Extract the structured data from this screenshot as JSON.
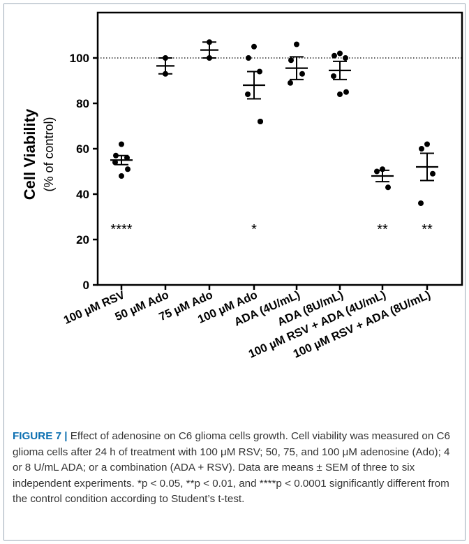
{
  "chart_data": {
    "type": "scatter",
    "ylabel_main": "Cell Viability",
    "ylabel_sub": "(% of control)",
    "ylim": [
      0,
      120
    ],
    "yticks": [
      0,
      20,
      40,
      60,
      80,
      100
    ],
    "reference_line": 100,
    "categories": [
      "100 µM RSV",
      "50 µM Ado",
      "75 µM Ado",
      "100 µM Ado",
      "ADA (4U/mL)",
      "ADA (8U/mL)",
      "100 µM  RSV + ADA (4U/mL)",
      "100 µM  RSV + ADA (8U/mL)"
    ],
    "points": [
      [
        62,
        57,
        56,
        54,
        51,
        48
      ],
      [
        100,
        93
      ],
      [
        107,
        100
      ],
      [
        105,
        100,
        94,
        84,
        72,
        72
      ],
      [
        106,
        99,
        93,
        89
      ],
      [
        102,
        101,
        100,
        92,
        85,
        84
      ],
      [
        51,
        50,
        43
      ],
      [
        62,
        60,
        49,
        36
      ]
    ],
    "mean": [
      55,
      96.5,
      103.5,
      88,
      95.5,
      94.5,
      48,
      52
    ],
    "sem": [
      2,
      3.5,
      3.5,
      6,
      5,
      4,
      2.5,
      6
    ],
    "significance": [
      "****",
      "",
      "",
      "*",
      "",
      "",
      "**",
      "**"
    ],
    "significance_y": 25
  },
  "caption": {
    "label": "FIGURE 7",
    "sep": " | ",
    "text": "Effect of adenosine on C6 glioma cells growth. Cell viability was measured on C6 glioma cells after 24 h of treatment with 100 μM RSV; 50, 75, and 100 μM adenosine (Ado); 4 or 8 U/mL ADA; or a combination (ADA + RSV). Data are means ± SEM of three to six independent experiments. *p < 0.05, **p < 0.01, and ****p < 0.0001 significantly different from the control condition according to Student’s t-test."
  }
}
